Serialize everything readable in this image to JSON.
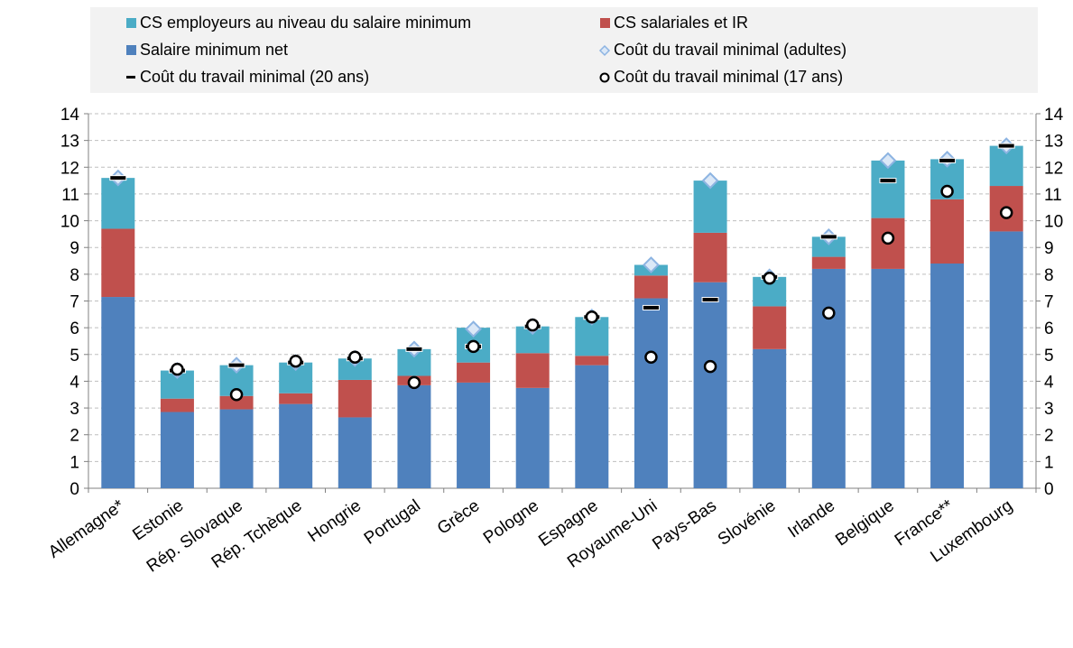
{
  "chart_data": {
    "type": "bar",
    "stacked": true,
    "title": "",
    "xlabel": "",
    "ylabel": "",
    "ylim": [
      0,
      14
    ],
    "yticks": [
      0,
      1,
      2,
      3,
      4,
      5,
      6,
      7,
      8,
      9,
      10,
      11,
      12,
      13,
      14
    ],
    "secondary_y_axis": "right, same scale 0–14",
    "grid": "horizontal dashed",
    "legend_position": "top",
    "categories": [
      "Allemagne*",
      "Estonie",
      "Rép. Slovaque",
      "Rép. Tchèque",
      "Hongrie",
      "Portugal",
      "Grèce",
      "Pologne",
      "Espagne",
      "Royaume-Uni",
      "Pays-Bas",
      "Slovénie",
      "Irlande",
      "Belgique",
      "France**",
      "Luxembourg"
    ],
    "series": [
      {
        "name": "Salaire minimum net",
        "kind": "bar",
        "color": "#4f81bd",
        "values": [
          7.15,
          2.85,
          2.95,
          3.15,
          2.65,
          3.85,
          3.95,
          3.75,
          4.6,
          7.1,
          7.7,
          5.2,
          8.2,
          8.2,
          8.4,
          9.6
        ]
      },
      {
        "name": "CS salariales et IR",
        "kind": "bar",
        "color": "#c0504d",
        "values": [
          2.55,
          0.5,
          0.5,
          0.4,
          1.4,
          0.35,
          0.75,
          1.3,
          0.35,
          0.85,
          1.85,
          1.6,
          0.45,
          1.9,
          2.4,
          1.7
        ]
      },
      {
        "name": "CS employeurs au niveau du salaire minimum",
        "kind": "bar",
        "color": "#4bacc6",
        "values": [
          1.9,
          1.05,
          1.15,
          1.15,
          0.8,
          1.0,
          1.3,
          1.0,
          1.45,
          0.4,
          1.95,
          1.1,
          0.75,
          2.15,
          1.5,
          1.5
        ]
      },
      {
        "name": "Coût du travail minimal (adultes)",
        "kind": "marker",
        "marker": "diamond",
        "color": "#8db4e2",
        "values": [
          11.6,
          4.4,
          4.6,
          4.7,
          4.85,
          5.2,
          5.95,
          6.05,
          6.4,
          8.35,
          11.5,
          7.9,
          9.4,
          12.25,
          12.3,
          12.8
        ]
      },
      {
        "name": "Coût du travail minimal (20 ans)",
        "kind": "marker",
        "marker": "dash",
        "color": "#000000",
        "values": [
          11.6,
          4.4,
          4.6,
          4.7,
          4.85,
          5.2,
          5.3,
          6.05,
          6.4,
          6.75,
          7.05,
          7.9,
          9.4,
          11.5,
          12.25,
          12.8
        ]
      },
      {
        "name": "Coût du travail minimal (17 ans)",
        "kind": "marker",
        "marker": "circle",
        "color": "#000000",
        "values": [
          null,
          4.45,
          3.5,
          4.75,
          4.9,
          3.95,
          5.3,
          6.1,
          6.4,
          4.9,
          4.55,
          7.85,
          6.55,
          9.35,
          11.1,
          10.3
        ]
      }
    ],
    "legend_rows": [
      [
        "CS employeurs au niveau du salaire minimum",
        "CS salariales et IR"
      ],
      [
        "Salaire minimum net",
        "Coût du travail minimal (adultes)"
      ],
      [
        "Coût du travail minimal (20 ans)",
        "Coût du travail minimal (17 ans)"
      ]
    ]
  }
}
